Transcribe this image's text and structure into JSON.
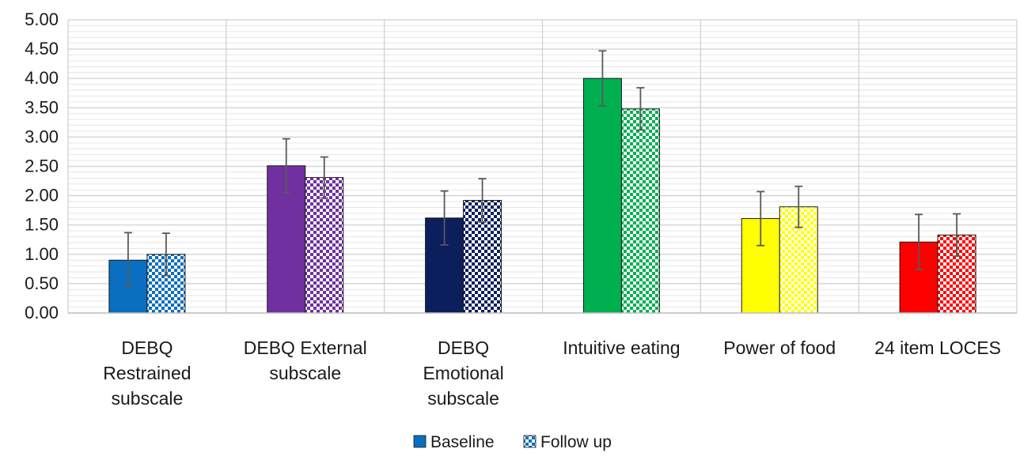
{
  "chart_data": {
    "type": "bar",
    "title": "",
    "xlabel": "",
    "ylabel": "",
    "ylim": [
      0,
      5
    ],
    "y_ticks": [
      "0.00",
      "0.50",
      "1.00",
      "1.50",
      "2.00",
      "2.50",
      "3.00",
      "3.50",
      "4.00",
      "4.50",
      "5.00"
    ],
    "grid": true,
    "legend_position": "bottom",
    "categories": [
      [
        "DEBQ",
        "Restrained",
        "subscale"
      ],
      [
        "DEBQ External",
        "subscale"
      ],
      [
        "DEBQ",
        "Emotional",
        "subscale"
      ],
      [
        "Intuitive eating"
      ],
      [
        "Power of food"
      ],
      [
        "24 item LOCES"
      ]
    ],
    "category_colors": [
      "#0a6fc0",
      "#7030a0",
      "#0b1f5c",
      "#00b050",
      "#ffff00",
      "#ff0000"
    ],
    "series": [
      {
        "name": "Baseline",
        "pattern": "solid",
        "values": [
          0.9,
          2.51,
          1.62,
          4.0,
          1.61,
          1.21
        ],
        "error": [
          0.47,
          0.46,
          0.46,
          0.47,
          0.46,
          0.47
        ]
      },
      {
        "name": "Follow up",
        "pattern": "checkered",
        "values": [
          1.0,
          2.31,
          1.92,
          3.48,
          1.81,
          1.33
        ],
        "error": [
          0.36,
          0.35,
          0.37,
          0.36,
          0.35,
          0.36
        ]
      }
    ]
  }
}
